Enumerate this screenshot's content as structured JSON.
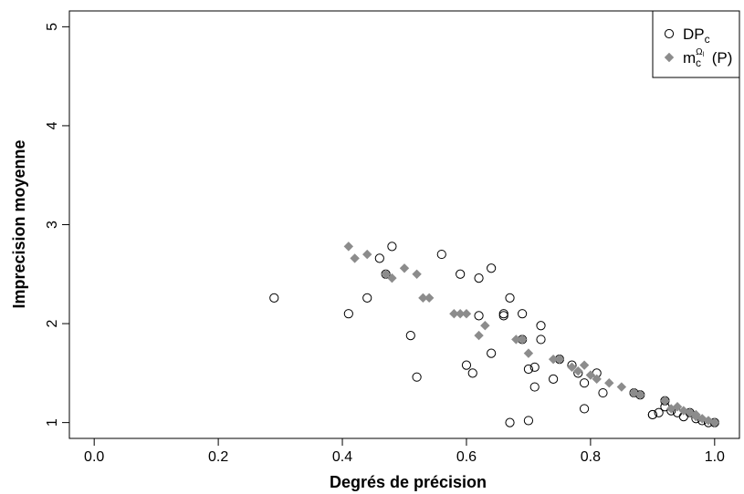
{
  "chart_data": {
    "type": "scatter",
    "title": "",
    "xlabel": "Degrés de précision",
    "ylabel": "Imprecision moyenne",
    "xlim": [
      -0.04,
      1.04
    ],
    "ylim": [
      0.84,
      5.16
    ],
    "x_ticks": [
      "0.0",
      "0.2",
      "0.4",
      "0.6",
      "0.8",
      "1.0"
    ],
    "y_ticks": [
      "1",
      "2",
      "3",
      "4",
      "5"
    ],
    "grid": false,
    "legend_position": "top-right",
    "series": [
      {
        "name": "DP_c",
        "legend_main": "DP",
        "legend_sub": "c",
        "marker": "open-circle",
        "color": "#000000",
        "points": [
          [
            0.29,
            2.26
          ],
          [
            0.41,
            2.1
          ],
          [
            0.44,
            2.26
          ],
          [
            0.46,
            2.66
          ],
          [
            0.47,
            2.5
          ],
          [
            0.48,
            2.78
          ],
          [
            0.51,
            1.88
          ],
          [
            0.52,
            1.46
          ],
          [
            0.56,
            2.7
          ],
          [
            0.59,
            2.5
          ],
          [
            0.6,
            1.58
          ],
          [
            0.61,
            1.5
          ],
          [
            0.62,
            2.46
          ],
          [
            0.62,
            2.08
          ],
          [
            0.64,
            2.56
          ],
          [
            0.64,
            1.7
          ],
          [
            0.66,
            2.1
          ],
          [
            0.66,
            2.08
          ],
          [
            0.67,
            1.0
          ],
          [
            0.67,
            2.26
          ],
          [
            0.69,
            2.1
          ],
          [
            0.69,
            1.84
          ],
          [
            0.7,
            1.02
          ],
          [
            0.7,
            1.54
          ],
          [
            0.71,
            1.36
          ],
          [
            0.71,
            1.56
          ],
          [
            0.72,
            1.84
          ],
          [
            0.72,
            1.98
          ],
          [
            0.74,
            1.44
          ],
          [
            0.75,
            1.64
          ],
          [
            0.77,
            1.58
          ],
          [
            0.78,
            1.5
          ],
          [
            0.79,
            1.4
          ],
          [
            0.79,
            1.14
          ],
          [
            0.81,
            1.5
          ],
          [
            0.82,
            1.3
          ],
          [
            0.87,
            1.3
          ],
          [
            0.88,
            1.28
          ],
          [
            0.9,
            1.08
          ],
          [
            0.9,
            1.08
          ],
          [
            0.91,
            1.1
          ],
          [
            0.92,
            1.16
          ],
          [
            0.92,
            1.22
          ],
          [
            0.93,
            1.12
          ],
          [
            0.94,
            1.1
          ],
          [
            0.95,
            1.06
          ],
          [
            0.96,
            1.1
          ],
          [
            0.97,
            1.04
          ],
          [
            0.98,
            1.02
          ],
          [
            0.99,
            1.0
          ],
          [
            1.0,
            1.0
          ]
        ]
      },
      {
        "name": "m_c^{Ω_l}(P)",
        "legend_main": "m",
        "legend_sub": "c",
        "legend_sup": "Ω",
        "legend_sup_sub": "l",
        "legend_tail": " (P)",
        "marker": "filled-diamond",
        "color": "#8c8c8c",
        "points": [
          [
            0.41,
            2.78
          ],
          [
            0.42,
            2.66
          ],
          [
            0.44,
            2.7
          ],
          [
            0.47,
            2.5
          ],
          [
            0.48,
            2.46
          ],
          [
            0.5,
            2.56
          ],
          [
            0.52,
            2.5
          ],
          [
            0.53,
            2.26
          ],
          [
            0.54,
            2.26
          ],
          [
            0.58,
            2.1
          ],
          [
            0.59,
            2.1
          ],
          [
            0.6,
            2.1
          ],
          [
            0.62,
            1.88
          ],
          [
            0.63,
            1.98
          ],
          [
            0.68,
            1.84
          ],
          [
            0.69,
            1.84
          ],
          [
            0.7,
            1.7
          ],
          [
            0.74,
            1.64
          ],
          [
            0.75,
            1.64
          ],
          [
            0.77,
            1.56
          ],
          [
            0.78,
            1.52
          ],
          [
            0.79,
            1.58
          ],
          [
            0.8,
            1.48
          ],
          [
            0.81,
            1.44
          ],
          [
            0.83,
            1.4
          ],
          [
            0.85,
            1.36
          ],
          [
            0.87,
            1.3
          ],
          [
            0.88,
            1.28
          ],
          [
            0.92,
            1.22
          ],
          [
            0.93,
            1.14
          ],
          [
            0.94,
            1.16
          ],
          [
            0.95,
            1.12
          ],
          [
            0.96,
            1.1
          ],
          [
            0.97,
            1.08
          ],
          [
            0.97,
            1.06
          ],
          [
            0.98,
            1.04
          ],
          [
            0.99,
            1.02
          ],
          [
            1.0,
            1.0
          ]
        ]
      }
    ]
  }
}
